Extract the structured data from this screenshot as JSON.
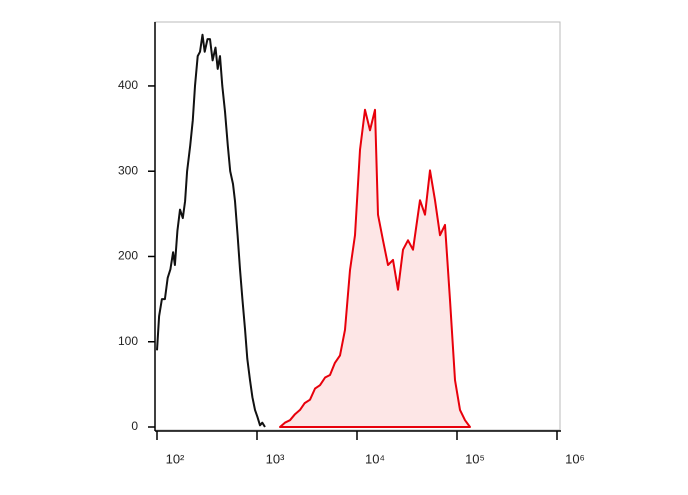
{
  "chart_data": {
    "type": "line",
    "xscale": "log",
    "xlim": [
      100,
      1000000
    ],
    "ylim": [
      0,
      475
    ],
    "xticks": [
      {
        "value": 100,
        "label": "10²"
      },
      {
        "value": 1000,
        "label": "10³"
      },
      {
        "value": 10000,
        "label": "10⁴"
      },
      {
        "value": 100000,
        "label": "10⁵"
      },
      {
        "value": 1000000,
        "label": "10⁶"
      }
    ],
    "yticks": [
      0,
      100,
      200,
      300,
      400
    ],
    "series": [
      {
        "color": "#111111",
        "fill": "none",
        "x": [
          100,
          105,
          112,
          120,
          128,
          136,
          145,
          151,
          160,
          170,
          181,
          191,
          200,
          215,
          228,
          240,
          255,
          269,
          285,
          300,
          320,
          339,
          360,
          385,
          405,
          427,
          450,
          479,
          510,
          540,
          575,
          603,
          640,
          676,
          715,
          759,
          800,
          851,
          900,
          955,
          1010,
          1072,
          1130,
          1202
        ],
        "values": [
          90,
          130,
          150,
          150,
          175,
          185,
          205,
          190,
          230,
          255,
          245,
          265,
          300,
          330,
          360,
          400,
          435,
          440,
          460,
          440,
          455,
          455,
          430,
          445,
          420,
          435,
          400,
          370,
          330,
          300,
          285,
          265,
          225,
          185,
          150,
          115,
          80,
          55,
          35,
          20,
          12,
          2,
          5,
          0
        ]
      },
      {
        "color": "#e8000b",
        "fill": "#fde6e6",
        "x": [
          1698,
          1900,
          2138,
          2400,
          2692,
          3000,
          3388,
          3800,
          4266,
          4800,
          5370,
          6000,
          6761,
          7586,
          8511,
          9550,
          10715,
          12023,
          13490,
          15136,
          16218,
          18197,
          20417,
          22909,
          25704,
          28840,
          32359,
          36308,
          42658,
          47863,
          53703,
          60256,
          67608,
          75858,
          85114,
          95499,
          107152,
          120226,
          134896
        ],
        "values": [
          0,
          5,
          8,
          15,
          20,
          28,
          32,
          45,
          49,
          58,
          61,
          75,
          84,
          114,
          184,
          225,
          325,
          372,
          348,
          372,
          249,
          219,
          190,
          196,
          161,
          208,
          219,
          208,
          266,
          249,
          301,
          266,
          225,
          237,
          149,
          55,
          20,
          8,
          0
        ]
      }
    ]
  }
}
